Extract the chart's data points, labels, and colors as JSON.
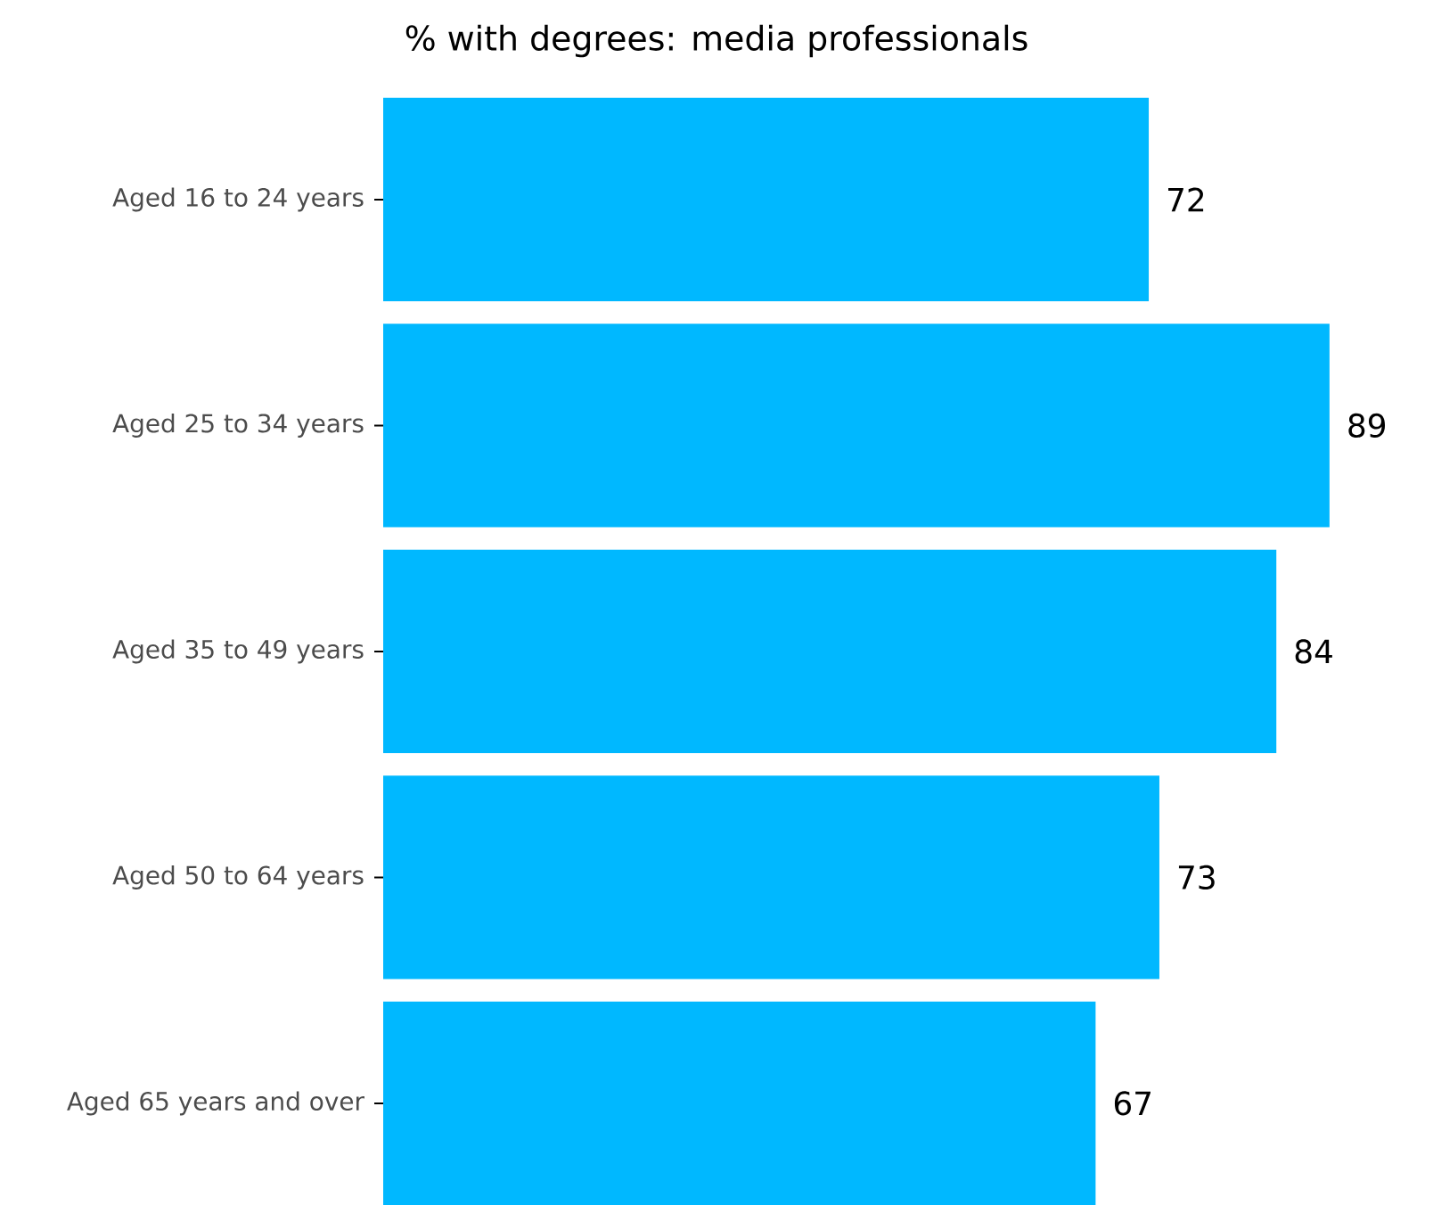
{
  "chart_data": {
    "type": "bar",
    "orientation": "horizontal",
    "title": "% with degrees: media professionals",
    "categories": [
      "Aged 16 to 24 years",
      "Aged 25 to 34 years",
      "Aged 35 to 49 years",
      "Aged 50 to 64 years",
      "Aged 65 years and over"
    ],
    "values": [
      72,
      89,
      84,
      73,
      67
    ],
    "color": "#00b8ff",
    "data_labels": true,
    "tick_labels": "y"
  }
}
